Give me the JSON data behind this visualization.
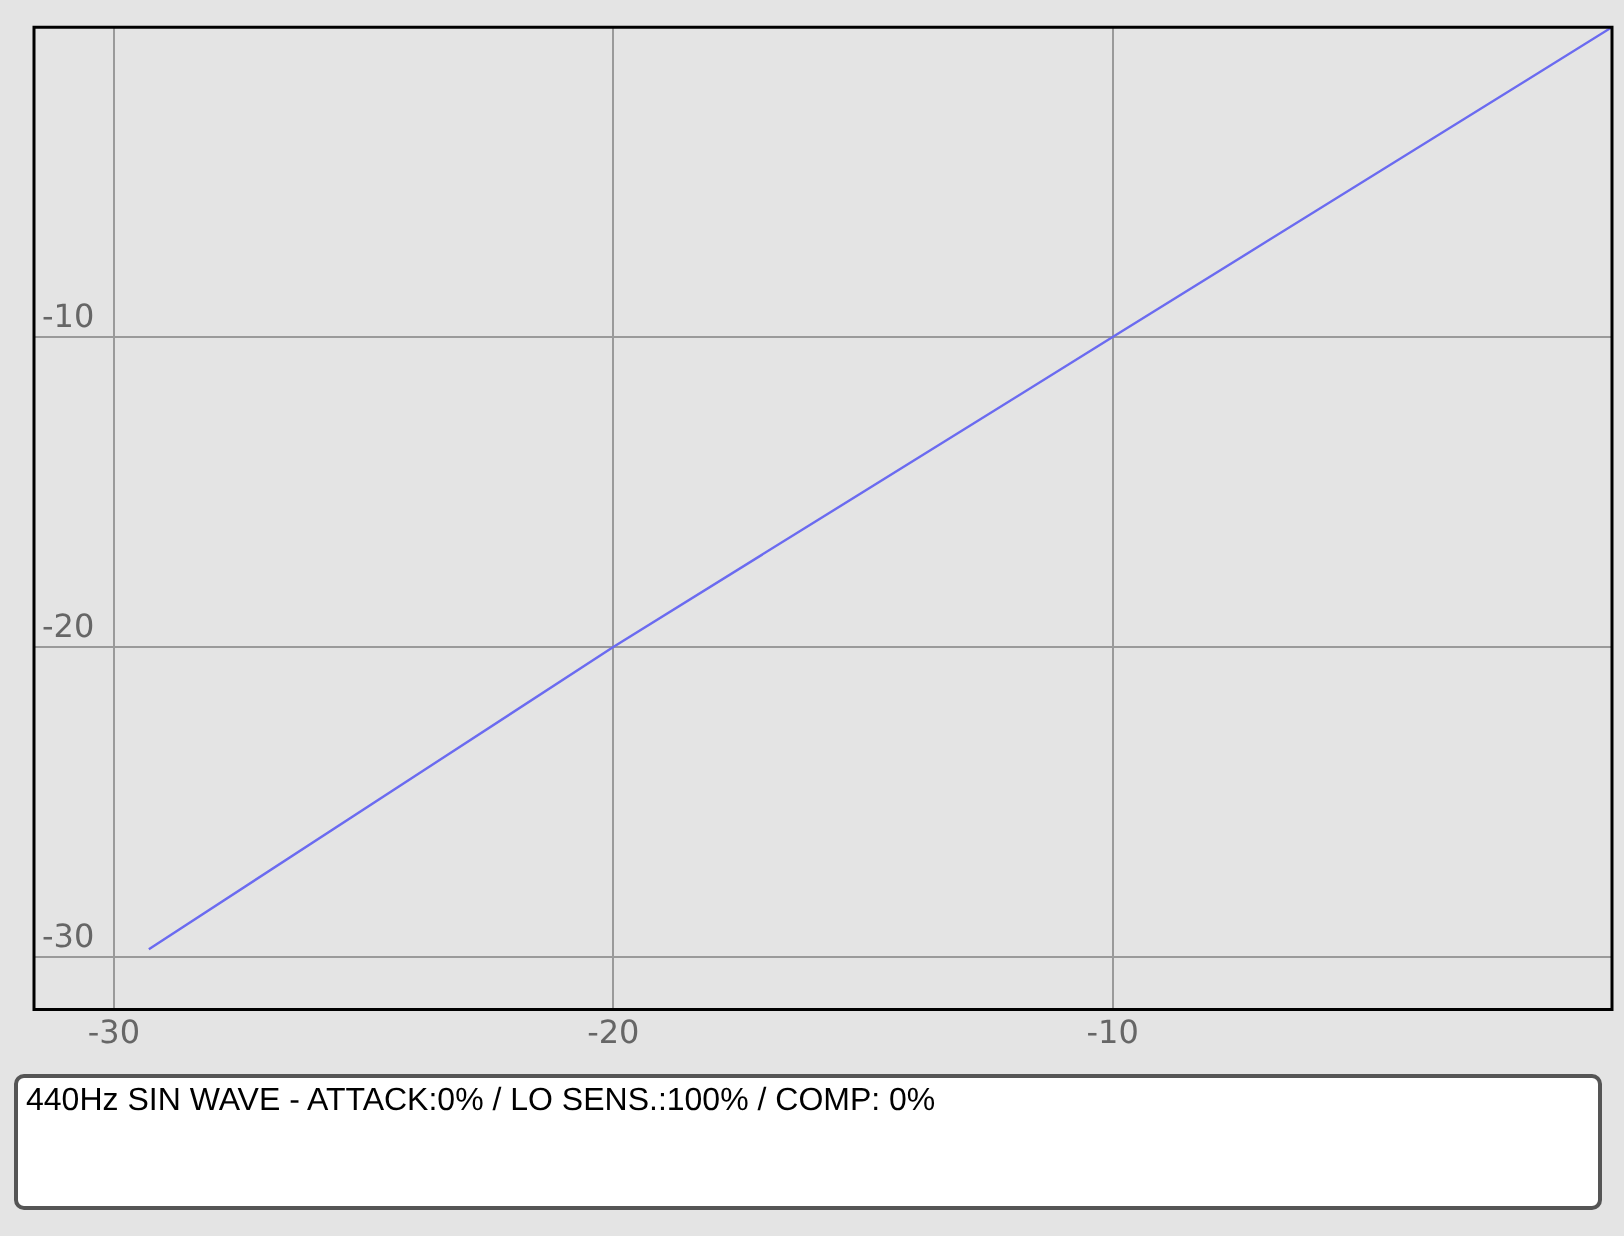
{
  "chart_data": {
    "type": "line",
    "x": [
      -29.3,
      -20,
      -10,
      0
    ],
    "series": [
      {
        "color": "#6b6bf0",
        "values": [
          -29.75,
          -20,
          -10,
          0
        ]
      }
    ],
    "xlim": [
      -31.6,
      0
    ],
    "ylim": [
      -31.7,
      0
    ],
    "xticks": [
      -30,
      -20,
      -10
    ],
    "yticks": [
      -30,
      -20,
      -10
    ],
    "grid": true,
    "legend": false,
    "annotations": [
      "440Hz SIN WAVE - ATTACK:0% / LO SENS.:100% / COMP: 0%"
    ]
  }
}
